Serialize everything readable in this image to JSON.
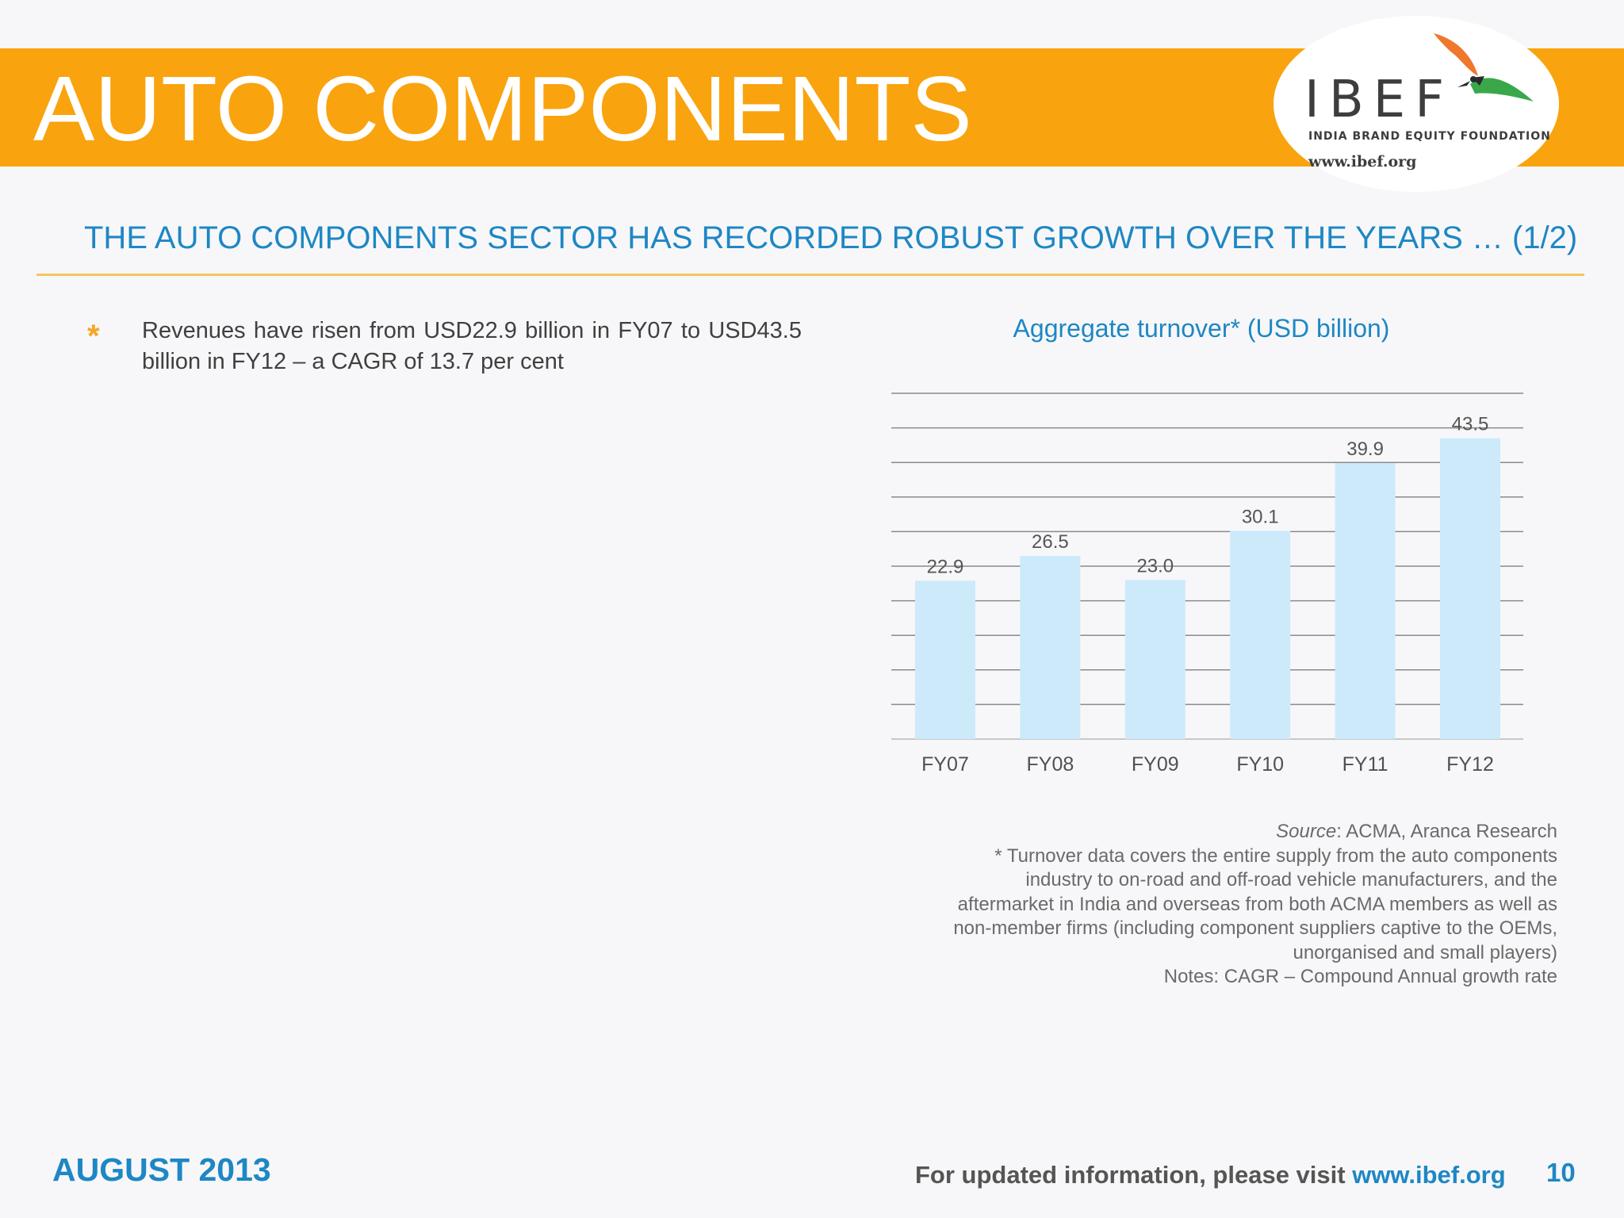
{
  "header": {
    "title": "AUTO COMPONENTS",
    "logo": {
      "name": "IBEF",
      "tagline": "INDIA BRAND EQUITY FOUNDATION",
      "url": "www.ibef.org"
    }
  },
  "slide": {
    "subtitle": "THE AUTO COMPONENTS SECTOR HAS RECORDED ROBUST GROWTH OVER THE YEARS … (1/2)",
    "bullets": [
      "Revenues have risen from USD22.9 billion in FY07 to USD43.5 billion in FY12 – a CAGR of 13.7 per cent"
    ]
  },
  "chart_data": {
    "type": "bar",
    "title": "Aggregate turnover* (USD billion)",
    "categories": [
      "FY07",
      "FY08",
      "FY09",
      "FY10",
      "FY11",
      "FY12"
    ],
    "values": [
      22.9,
      26.5,
      23.0,
      30.1,
      39.9,
      43.5
    ],
    "value_labels": [
      "22.9",
      "26.5",
      "23.0",
      "30.1",
      "39.9",
      "43.5"
    ],
    "ylim": [
      0,
      50
    ],
    "grid": true,
    "bar_color": "#cdeafb"
  },
  "notes": {
    "source_label": "Source",
    "source_text": ": ACMA, Aranca Research",
    "footnote_lines": [
      "* Turnover data covers the entire supply from the auto components",
      "industry to on-road and off-road vehicle manufacturers, and the",
      "aftermarket in India and overseas from both ACMA members as well as",
      "non-member firms (including component suppliers captive to the OEMs,",
      "unorganised and small players)",
      "Notes: CAGR – Compound Annual growth rate"
    ]
  },
  "footer": {
    "date": "AUGUST 2013",
    "visit_text": "For updated information, please visit ",
    "visit_url": "www.ibef.org",
    "page_number": "10"
  },
  "colors": {
    "banner": "#f9a30e",
    "accent_blue": "#1e87c4",
    "rule": "#f5c45e"
  }
}
